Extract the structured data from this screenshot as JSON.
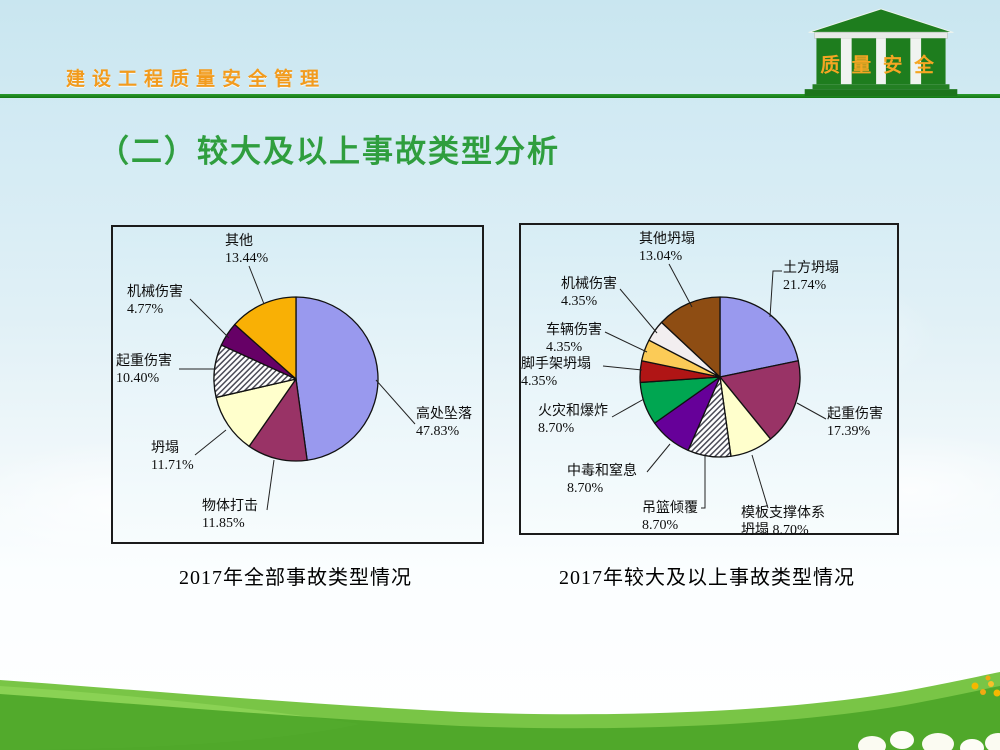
{
  "header": {
    "title": "建设工程质量安全管理",
    "logo_text": "质量安全"
  },
  "slide_title": "（二）较大及以上事故类型分析",
  "chart_data": [
    {
      "type": "pie",
      "title": "2017年全部事故类型情况",
      "start_angle_deg": 0,
      "direction": "clockwise",
      "slices": [
        {
          "label": "高处坠落",
          "value": 47.83,
          "display": "47.83%",
          "color": "#9999ee",
          "hatch": false
        },
        {
          "label": "物体打击",
          "value": 11.85,
          "display": "11.85%",
          "color": "#993366",
          "hatch": false
        },
        {
          "label": "坍塌",
          "value": 11.71,
          "display": "11.71%",
          "color": "#ffffcc",
          "hatch": false
        },
        {
          "label": "起重伤害",
          "value": 10.4,
          "display": "10.40%",
          "color": "#ffffff",
          "hatch": true
        },
        {
          "label": "机械伤害",
          "value": 4.77,
          "display": "4.77%",
          "color": "#660066",
          "hatch": false
        },
        {
          "label": "其他",
          "value": 13.44,
          "display": "13.44%",
          "color": "#f9b005",
          "hatch": false
        }
      ]
    },
    {
      "type": "pie",
      "title": "2017年较大及以上事故类型情况",
      "start_angle_deg": 0,
      "direction": "clockwise",
      "slices": [
        {
          "label": "土方坍塌",
          "value": 21.74,
          "display": "21.74%",
          "color": "#9999ee",
          "hatch": false
        },
        {
          "label": "起重伤害",
          "value": 17.39,
          "display": "17.39%",
          "color": "#993366",
          "hatch": false
        },
        {
          "label": "模板支撑体系坍塌",
          "value": 8.7,
          "display": "8.70%",
          "color": "#ffffcc",
          "hatch": false
        },
        {
          "label": "吊篮倾覆",
          "value": 8.7,
          "display": "8.70%",
          "color": "#ffffff",
          "hatch": true
        },
        {
          "label": "中毒和窒息",
          "value": 8.7,
          "display": "8.70%",
          "color": "#660099",
          "hatch": false
        },
        {
          "label": "火灾和爆炸",
          "value": 8.7,
          "display": "8.70%",
          "color": "#00a651",
          "hatch": false
        },
        {
          "label": "脚手架坍塌",
          "value": 4.35,
          "display": "4.35%",
          "color": "#b01515",
          "hatch": false
        },
        {
          "label": "车辆伤害",
          "value": 4.35,
          "display": "4.35%",
          "color": "#fbcb57",
          "hatch": false
        },
        {
          "label": "机械伤害",
          "value": 4.35,
          "display": "4.35%",
          "color": "#f2eef0",
          "hatch": false
        },
        {
          "label": "其他坍塌",
          "value": 13.04,
          "display": "13.04%",
          "color": "#8e4d13",
          "hatch": false
        }
      ]
    }
  ]
}
